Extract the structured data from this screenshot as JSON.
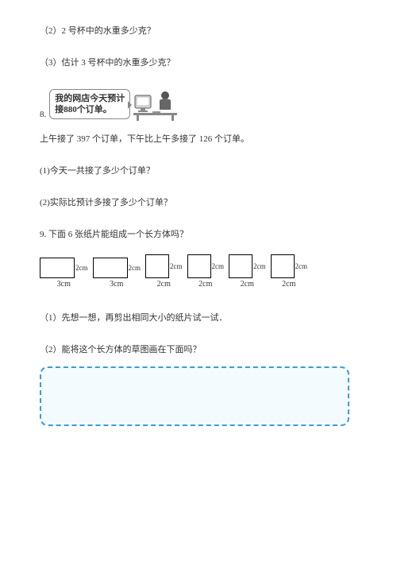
{
  "q2_text": "（2）2 号杯中的水重多少克？",
  "q3_text": "（3）估计 3 号杯中的水重多少克？",
  "q8": {
    "number": "8.",
    "bubble_line1": "我的网店今天预计",
    "bubble_line2": "接880个订单。",
    "statement": "上午接了 397 个订单，下午比上午多接了 126 个订单。",
    "sub1": "(1)今天一共接了多少个订单？",
    "sub2": "(2)实际比预计多接了多少个订单？"
  },
  "q9": {
    "title": "9. 下面 6 张纸片能组成一个长方体吗？",
    "shapes": [
      {
        "w": 44,
        "h": 26,
        "w_label": "3cm",
        "h_label": "2cm"
      },
      {
        "w": 44,
        "h": 26,
        "w_label": "3cm",
        "h_label": "2cm"
      },
      {
        "w": 30,
        "h": 30,
        "w_label": "2cm",
        "h_label": "2cm"
      },
      {
        "w": 30,
        "h": 30,
        "w_label": "2cm",
        "h_label": "2cm"
      },
      {
        "w": 30,
        "h": 30,
        "w_label": "2cm",
        "h_label": "2cm"
      },
      {
        "w": 30,
        "h": 30,
        "w_label": "2cm",
        "h_label": "2cm"
      }
    ],
    "sub1": "（1）先想一想，再剪出相同大小的纸片试一试．",
    "sub2": "（2）能将这个长方体的草图画在下面吗？"
  },
  "colors": {
    "text": "#333333",
    "border_box": "#3b9bd9",
    "box_bg": "#f4fbfe"
  }
}
